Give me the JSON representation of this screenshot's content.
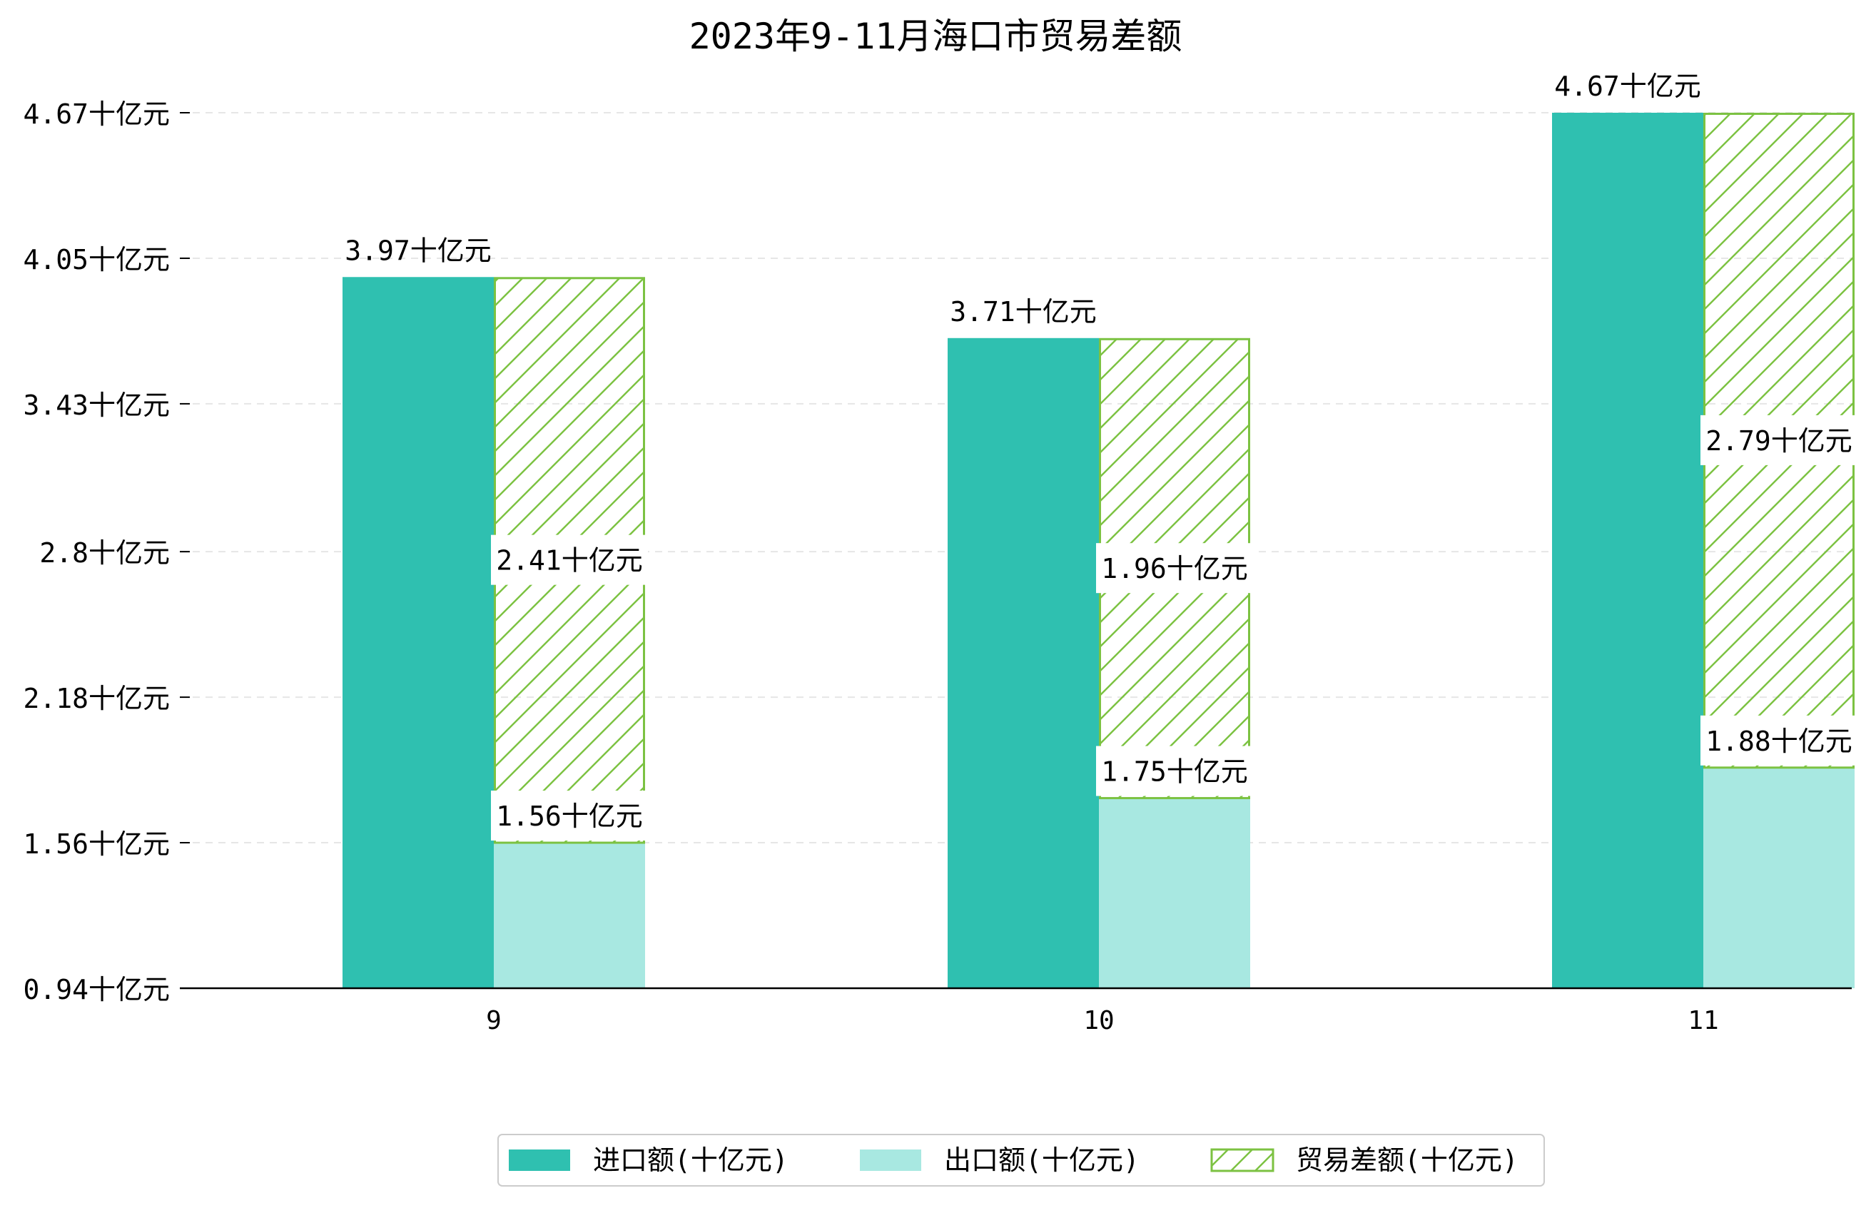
{
  "chart_data": {
    "type": "bar",
    "title": "2023年9-11月海口市贸易差额",
    "categories": [
      "9",
      "10",
      "11"
    ],
    "unit_suffix": "十亿元",
    "y_ticks": [
      "0.94",
      "1.56",
      "2.18",
      "2.8",
      "3.43",
      "4.05",
      "4.67"
    ],
    "ylim": [
      0.94,
      4.67
    ],
    "grid": true,
    "legend_position": "bottom-center",
    "series": [
      {
        "name": "进口额(十亿元)",
        "values": [
          3.97,
          3.71,
          4.67
        ],
        "labels": [
          "3.97十亿元",
          "3.71十亿元",
          "4.67十亿元"
        ],
        "color": "#2fc0b0",
        "stacked": false
      },
      {
        "name": "出口额(十亿元)",
        "values": [
          1.56,
          1.75,
          1.88
        ],
        "labels": [
          "1.56十亿元",
          "1.75十亿元",
          "1.88十亿元"
        ],
        "color": "#a8e8e1",
        "stacked": true
      },
      {
        "name": "贸易差额(十亿元)",
        "values": [
          2.41,
          1.96,
          2.79
        ],
        "labels": [
          "2.41十亿元",
          "1.96十亿元",
          "2.79十亿元"
        ],
        "color": "#7cc242",
        "pattern": "hatch",
        "stacked": true
      }
    ]
  }
}
